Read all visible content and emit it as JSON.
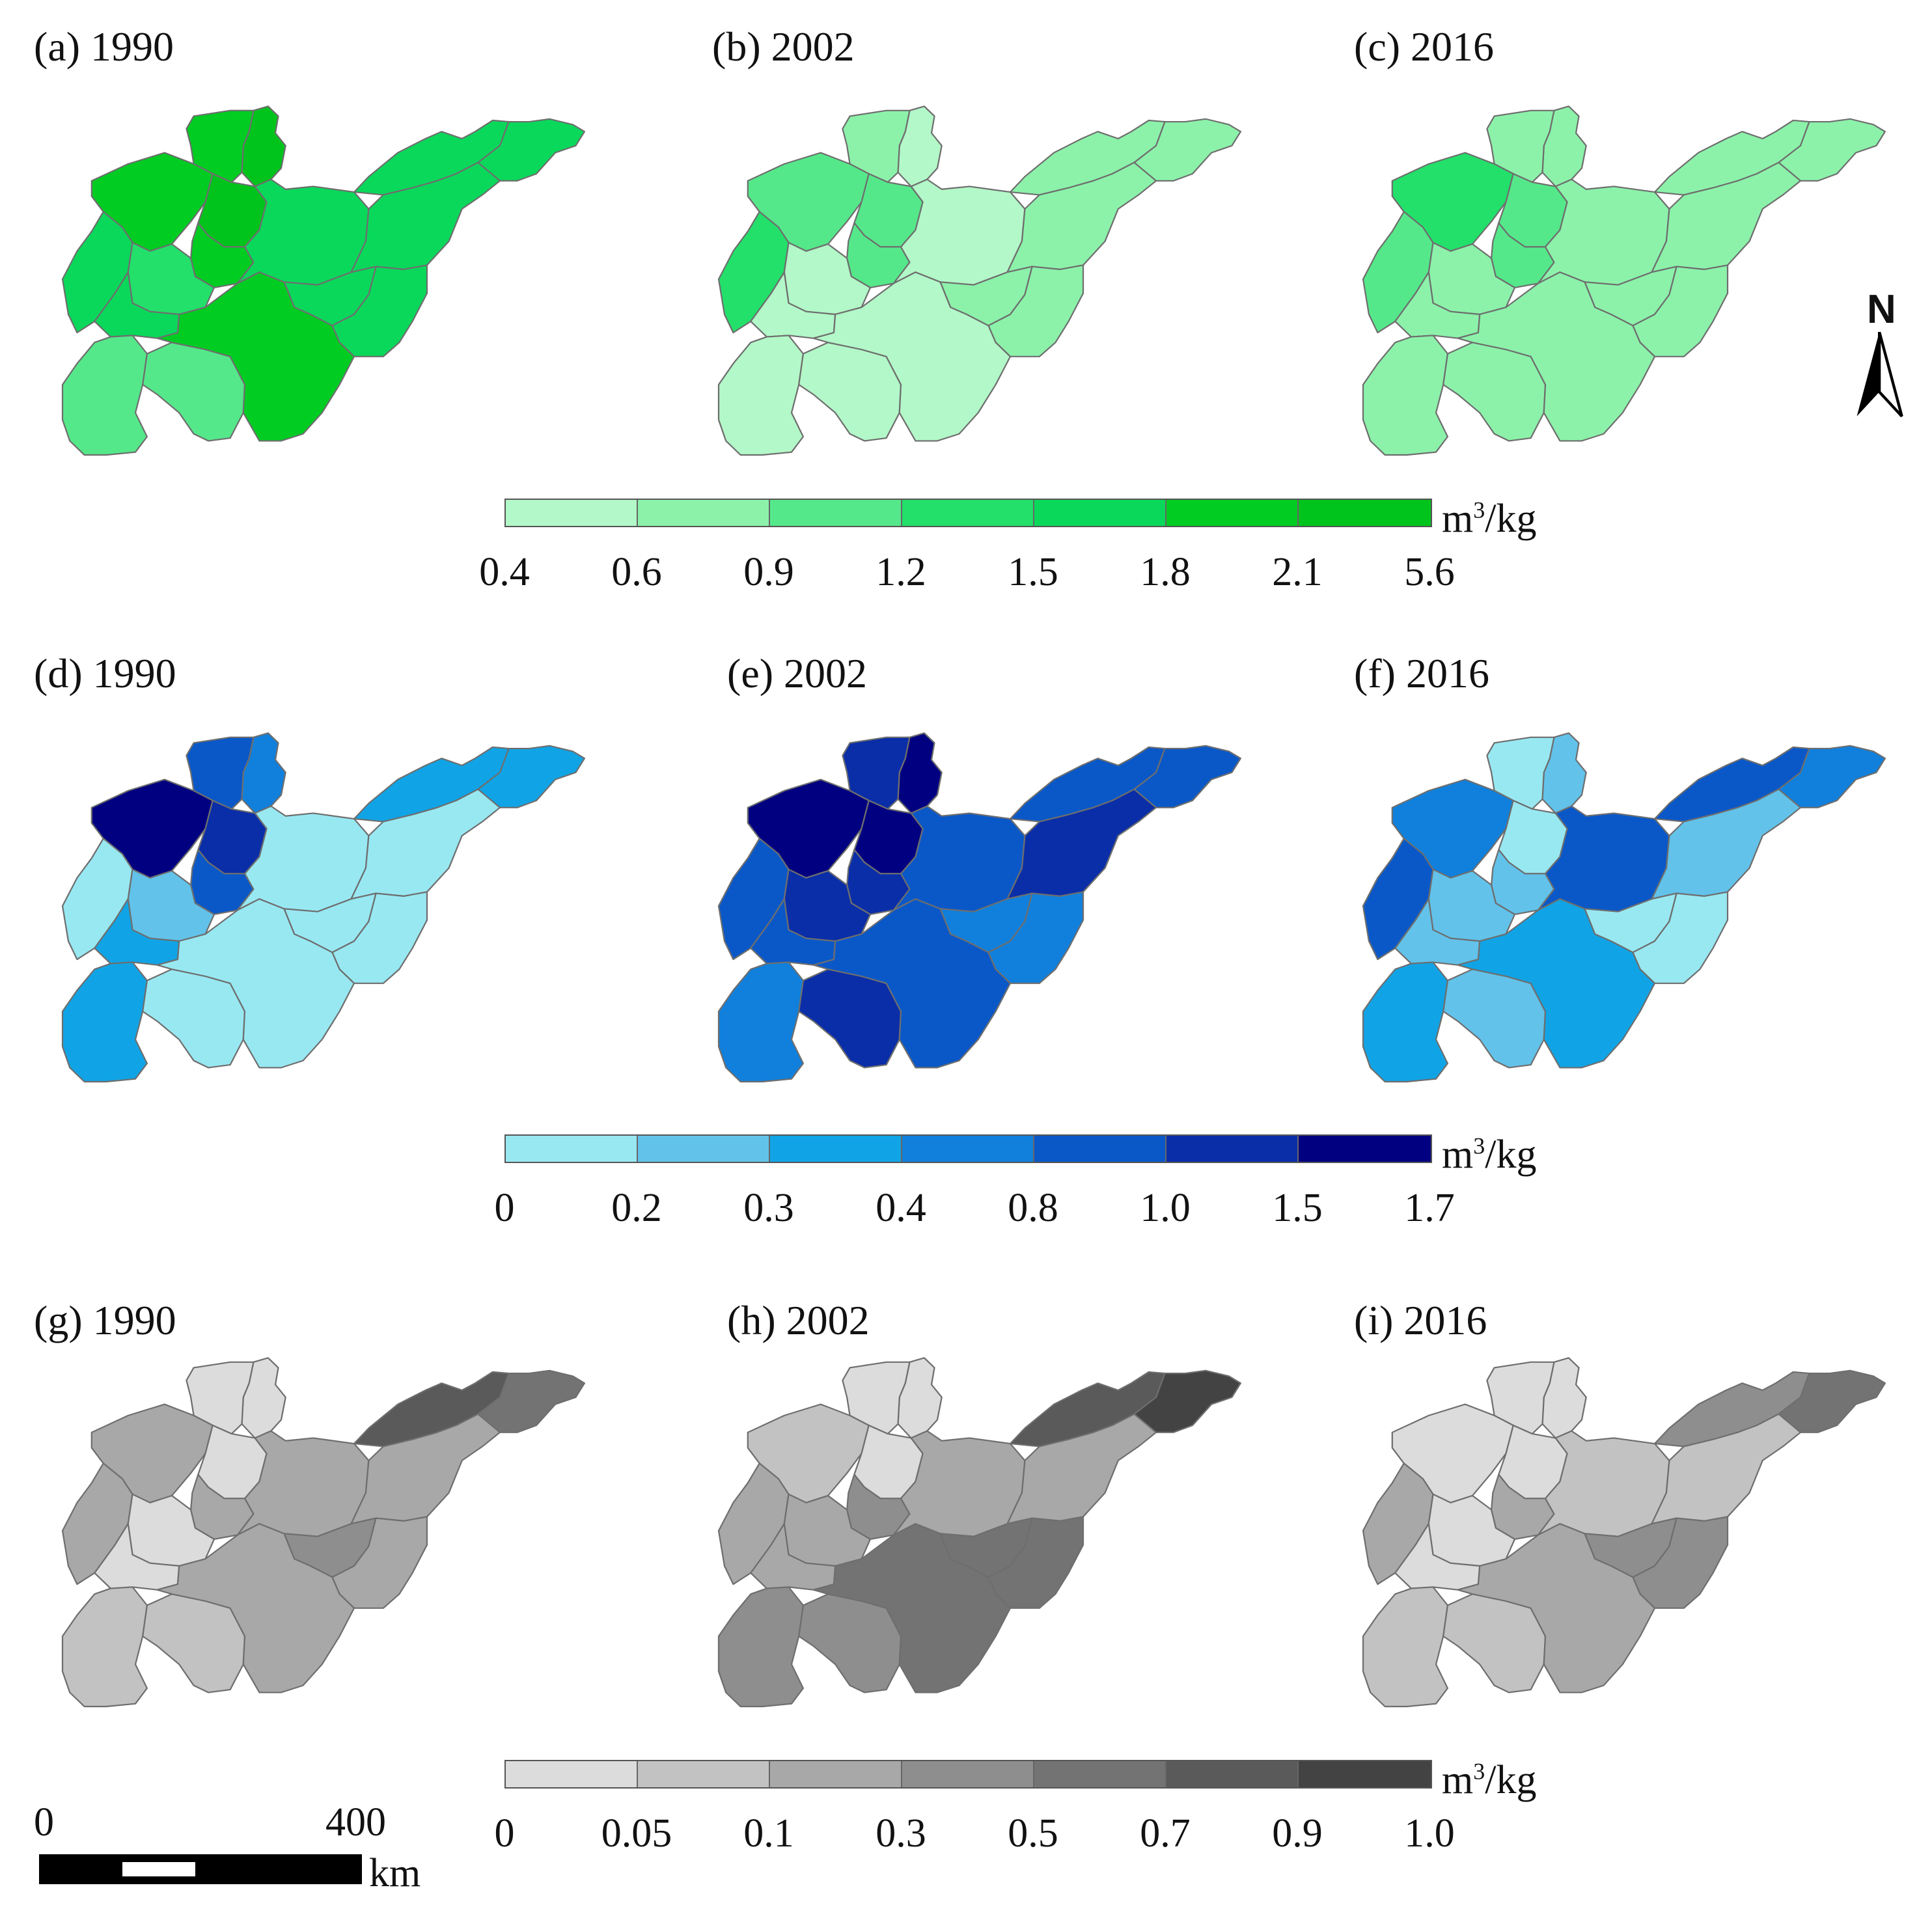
{
  "panels": [
    {
      "label": "(a) 1990",
      "group": 0,
      "classes": [
        6,
        5,
        5,
        6,
        5,
        4,
        3,
        4,
        4,
        4,
        4,
        4,
        4,
        4,
        2,
        2,
        5
      ]
    },
    {
      "label": "(b) 2002",
      "group": 0,
      "classes": [
        0,
        1,
        2,
        2,
        2,
        3,
        0,
        0,
        0,
        1,
        1,
        1,
        1,
        1,
        0,
        0,
        0
      ]
    },
    {
      "label": "(c) 2016",
      "group": 0,
      "classes": [
        1,
        1,
        3,
        2,
        2,
        2,
        1,
        1,
        1,
        1,
        1,
        1,
        1,
        1,
        1,
        1,
        1
      ]
    },
    {
      "label": "(d) 1990",
      "group": 1,
      "classes": [
        3,
        4,
        6,
        5,
        4,
        0,
        1,
        2,
        0,
        2,
        2,
        0,
        0,
        0,
        2,
        0,
        0
      ]
    },
    {
      "label": "(e) 2002",
      "group": 1,
      "classes": [
        6,
        5,
        6,
        6,
        5,
        4,
        5,
        4,
        4,
        4,
        4,
        5,
        3,
        3,
        3,
        5,
        4
      ]
    },
    {
      "label": "(f) 2016",
      "group": 1,
      "classes": [
        1,
        0,
        3,
        0,
        1,
        4,
        1,
        1,
        4,
        4,
        3,
        1,
        0,
        0,
        2,
        1,
        2
      ]
    },
    {
      "label": "(g) 1990",
      "group": 2,
      "classes": [
        0,
        0,
        2,
        0,
        2,
        2,
        0,
        0,
        2,
        5,
        4,
        2,
        3,
        2,
        1,
        1,
        2
      ]
    },
    {
      "label": "(h) 2002",
      "group": 2,
      "classes": [
        0,
        0,
        1,
        0,
        3,
        2,
        2,
        2,
        2,
        5,
        6,
        2,
        4,
        4,
        3,
        3,
        4
      ]
    },
    {
      "label": "(i) 2016",
      "group": 2,
      "classes": [
        0,
        0,
        0,
        0,
        2,
        2,
        0,
        0,
        1,
        3,
        4,
        1,
        3,
        3,
        1,
        1,
        2
      ]
    }
  ],
  "legends": [
    {
      "unit_base": "m",
      "unit_exp": "3",
      "unit_rest": "/kg",
      "ticks": [
        "0.4",
        "0.6",
        "0.9",
        "1.2",
        "1.5",
        "1.8",
        "2.1",
        "5.6"
      ],
      "colors": [
        "#b3f8c8",
        "#8cf2aa",
        "#55e88a",
        "#22e06a",
        "#0ad85a",
        "#00cc22",
        "#00c41c"
      ]
    },
    {
      "unit_base": "m",
      "unit_exp": "3",
      "unit_rest": "/kg",
      "ticks": [
        "0",
        "0.2",
        "0.3",
        "0.4",
        "0.8",
        "1.0",
        "1.5",
        "1.7"
      ],
      "colors": [
        "#98e8f2",
        "#62c2ea",
        "#10a4e6",
        "#1080dc",
        "#0a58c8",
        "#0a2ea8",
        "#000080"
      ]
    },
    {
      "unit_base": "m",
      "unit_exp": "3",
      "unit_rest": "/kg",
      "ticks": [
        "0",
        "0.05",
        "0.1",
        "0.3",
        "0.5",
        "0.7",
        "0.9",
        "1.0"
      ],
      "colors": [
        "#dcdcdc",
        "#c2c2c2",
        "#a8a8a8",
        "#8e8e8e",
        "#737373",
        "#5a5a5a",
        "#434343"
      ]
    }
  ],
  "scalebar": {
    "start_label": "0",
    "end_label": "400",
    "unit": "km"
  },
  "north_arrow": {
    "label": "N"
  }
}
